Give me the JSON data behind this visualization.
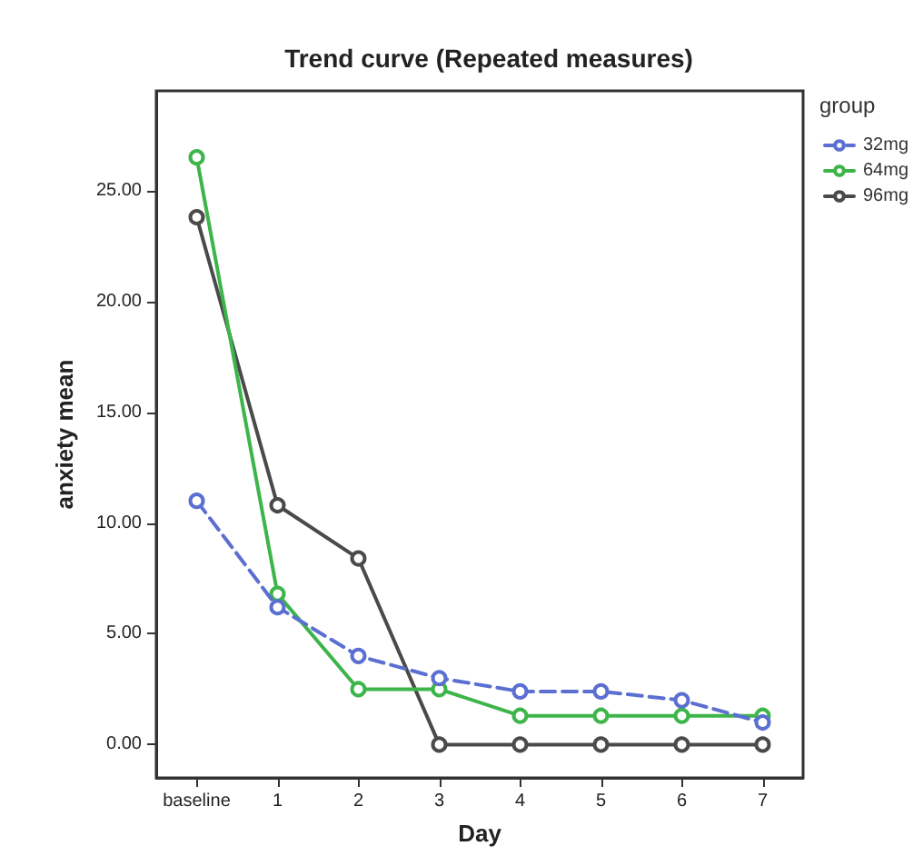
{
  "chart_data": {
    "type": "line",
    "title": "Trend curve (Repeated measures)",
    "xlabel": "Day",
    "ylabel": "anxiety mean",
    "legend_title": "group",
    "categories": [
      "baseline",
      "1",
      "2",
      "3",
      "4",
      "5",
      "6",
      "7"
    ],
    "series": [
      {
        "name": "32mg",
        "color": "#5b6fd1",
        "line_style": "dashed",
        "values": [
          11.0,
          6.2,
          4.0,
          3.0,
          2.4,
          2.4,
          2.0,
          1.0
        ]
      },
      {
        "name": "64mg",
        "color": "#3db54a",
        "line_style": "solid",
        "values": [
          26.5,
          6.8,
          2.5,
          2.5,
          1.3,
          1.3,
          1.3,
          1.3
        ]
      },
      {
        "name": "96mg",
        "color": "#4a4a4a",
        "line_style": "solid",
        "values": [
          23.8,
          10.8,
          8.4,
          0,
          0,
          0,
          0,
          0
        ]
      }
    ],
    "ylim": [
      -1.5,
      29.5
    ],
    "yticks": [
      {
        "value": 0,
        "label": "0.00"
      },
      {
        "value": 5,
        "label": "5.00"
      },
      {
        "value": 10,
        "label": "10.00"
      },
      {
        "value": 15,
        "label": "15.00"
      },
      {
        "value": 20,
        "label": "20.00"
      },
      {
        "value": 25,
        "label": "25.00"
      }
    ],
    "marker": "circle",
    "grid": false,
    "legend": "right"
  }
}
